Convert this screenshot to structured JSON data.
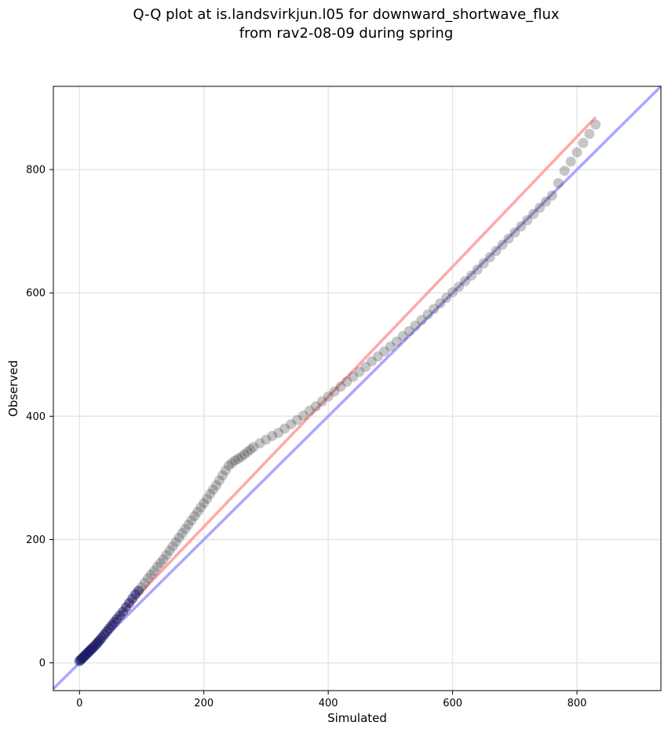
{
  "chart_data": {
    "type": "scatter",
    "title": "Q-Q plot at is.landsvirkjun.l05 for downward_shortwave_flux",
    "subtitle": "from rav2-08-09 during spring",
    "xlabel": "Simulated",
    "ylabel": "Observed",
    "xlim": [
      -42,
      935
    ],
    "ylim": [
      -45,
      935
    ],
    "xticks": [
      "0",
      "200",
      "400",
      "600",
      "800"
    ],
    "yticks": [
      "0",
      "200",
      "400",
      "600",
      "800"
    ],
    "grid": true,
    "legend": "none",
    "colors": {
      "points": "#333333",
      "points_low_range": "#1a1a66",
      "fit_line": "#ff9999",
      "identity_line": "#9999ff",
      "grid": "#e6e6e6"
    },
    "fit_line": {
      "x": [
        0,
        830
      ],
      "y": [
        10,
        885
      ]
    },
    "identity_line": {
      "x": [
        -42,
        935
      ],
      "y": [
        -42,
        935
      ]
    },
    "points": {
      "x": [
        0,
        2,
        4,
        6,
        8,
        10,
        12,
        14,
        16,
        18,
        20,
        22,
        25,
        28,
        30,
        33,
        36,
        40,
        44,
        48,
        52,
        56,
        60,
        65,
        70,
        75,
        80,
        85,
        90,
        95,
        100,
        105,
        110,
        115,
        120,
        125,
        130,
        135,
        140,
        145,
        150,
        155,
        160,
        165,
        170,
        175,
        180,
        185,
        190,
        195,
        200,
        205,
        210,
        215,
        220,
        225,
        230,
        235,
        240,
        245,
        250,
        255,
        260,
        265,
        270,
        275,
        280,
        290,
        300,
        310,
        320,
        330,
        340,
        350,
        360,
        370,
        380,
        390,
        400,
        410,
        420,
        430,
        440,
        450,
        460,
        470,
        480,
        490,
        500,
        510,
        520,
        530,
        540,
        550,
        560,
        570,
        580,
        590,
        600,
        610,
        620,
        630,
        640,
        650,
        660,
        670,
        680,
        690,
        700,
        710,
        720,
        730,
        740,
        750,
        760,
        770,
        780,
        790,
        800,
        810,
        820,
        830
      ],
      "y": [
        3,
        5,
        7,
        9,
        11,
        13,
        15,
        17,
        19,
        21,
        23,
        25,
        28,
        31,
        34,
        37,
        41,
        46,
        51,
        56,
        61,
        66,
        71,
        77,
        83,
        90,
        97,
        104,
        111,
        117,
        123,
        130,
        137,
        143,
        149,
        156,
        162,
        168,
        175,
        182,
        189,
        196,
        203,
        210,
        217,
        224,
        231,
        238,
        245,
        252,
        259,
        266,
        274,
        281,
        288,
        296,
        304,
        312,
        320,
        324,
        328,
        331,
        334,
        338,
        342,
        346,
        350,
        356,
        362,
        368,
        373,
        380,
        387,
        394,
        401,
        409,
        416,
        424,
        432,
        440,
        448,
        456,
        464,
        472,
        480,
        489,
        497,
        505,
        513,
        521,
        530,
        538,
        547,
        556,
        565,
        574,
        583,
        592,
        601,
        610,
        619,
        628,
        638,
        648,
        658,
        668,
        678,
        688,
        698,
        708,
        718,
        728,
        738,
        748,
        758,
        778,
        798,
        813,
        828,
        843,
        858,
        873
      ]
    }
  }
}
